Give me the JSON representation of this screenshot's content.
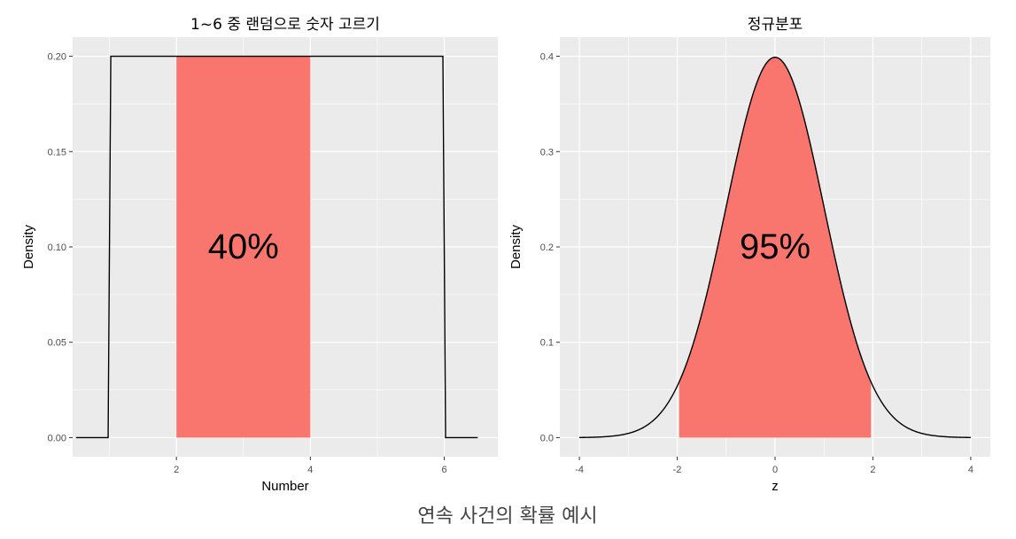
{
  "caption": "연속 사건의 확률 예시",
  "colors": {
    "panel_bg": "#EBEBEB",
    "grid": "#FFFFFF",
    "fill": "#F8766D",
    "line": "#000000",
    "tick_text": "#4D4D4D"
  },
  "chart_data": [
    {
      "type": "line",
      "title": "1~6 중 랜덤으로 숫자 고르기",
      "xlabel": "Number",
      "ylabel": "Density",
      "xlim": [
        0.45,
        6.8
      ],
      "ylim": [
        -0.01,
        0.21
      ],
      "x_ticks": [
        2,
        4,
        6
      ],
      "x_tick_labels": [
        "2",
        "4",
        "6"
      ],
      "y_ticks": [
        0.0,
        0.05,
        0.1,
        0.15,
        0.2
      ],
      "y_tick_labels": [
        "0.00",
        "0.05",
        "0.10",
        "0.15",
        "0.20"
      ],
      "distribution": "uniform",
      "series": [
        {
          "x": [
            0.5,
            0.98,
            1.02,
            5.98,
            6.02,
            6.5
          ],
          "y": [
            0,
            0,
            0.2,
            0.2,
            0,
            0
          ]
        }
      ],
      "shaded_region": {
        "x": [
          2,
          4
        ],
        "y_top": 0.2
      },
      "annotation": {
        "text": "40%",
        "x": 3,
        "y": 0.1
      },
      "grid": true
    },
    {
      "type": "line",
      "title": "정규분포",
      "xlabel": "z",
      "ylabel": "Density",
      "xlim": [
        -4.4,
        4.4
      ],
      "ylim": [
        -0.02,
        0.42
      ],
      "x_ticks": [
        -4,
        -2,
        0,
        2,
        4
      ],
      "x_tick_labels": [
        "-4",
        "-2",
        "0",
        "2",
        "4"
      ],
      "y_ticks": [
        0.0,
        0.1,
        0.2,
        0.3,
        0.4
      ],
      "y_tick_labels": [
        "0.0",
        "0.1",
        "0.2",
        "0.3",
        "0.4"
      ],
      "distribution": "normal",
      "mean": 0,
      "sd": 1,
      "x_range": [
        -4,
        4
      ],
      "shaded_region": {
        "x": [
          -1.96,
          1.96
        ]
      },
      "annotation": {
        "text": "95%",
        "x": 0,
        "y": 0.2
      },
      "grid": true
    }
  ]
}
